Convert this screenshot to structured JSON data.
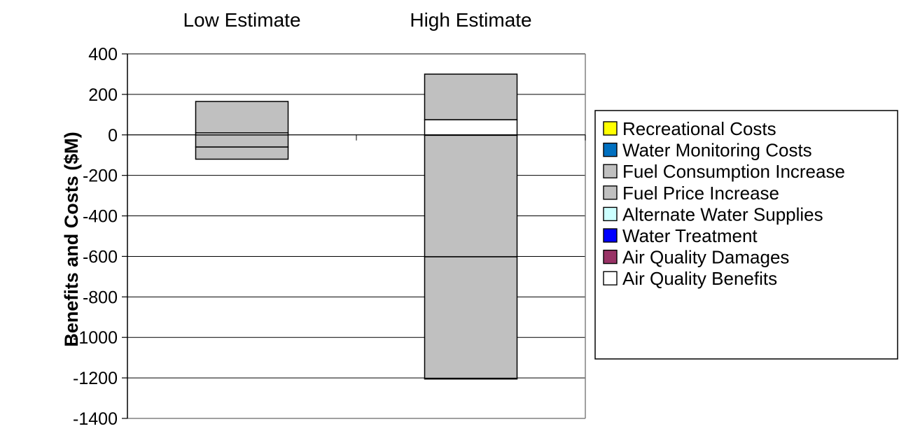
{
  "chart_data": {
    "type": "bar",
    "stacked": true,
    "title": "",
    "xlabel": "",
    "ylabel": "Benefits and Costs ($M)",
    "ylim": [
      -1400,
      400
    ],
    "yticks": [
      400,
      200,
      0,
      -200,
      -400,
      -600,
      -800,
      -1000,
      -1200,
      -1400
    ],
    "grid": true,
    "legend_position": "right",
    "categories": [
      "Low Estimate",
      "High Estimate"
    ],
    "category_labels_position": "top",
    "series": [
      {
        "name": "Recreational Costs",
        "color": "#ffff00",
        "values": [
          0,
          0
        ]
      },
      {
        "name": "Water Monitoring Costs",
        "color": "#0070c0",
        "values": [
          0,
          -2
        ]
      },
      {
        "name": "Fuel Consumption Increase",
        "color": "#c0c0c0",
        "values": [
          -60,
          -600
        ]
      },
      {
        "name": "Fuel Price Increase",
        "color": "#c0c0c0",
        "values": [
          -60,
          -600
        ]
      },
      {
        "name": "Alternate Water Supplies",
        "color": "#ccffff",
        "values": [
          0,
          0
        ]
      },
      {
        "name": "Water Treatment",
        "color": "#0000ff",
        "values": [
          0,
          -3
        ]
      },
      {
        "name": "Air Quality Damages",
        "color": "#993366",
        "values": [
          0,
          0
        ]
      },
      {
        "name": "Air Quality Benefits",
        "color": "#ffffff",
        "values": [
          10,
          75
        ]
      }
    ],
    "upper_extent": [
      165,
      300
    ]
  }
}
